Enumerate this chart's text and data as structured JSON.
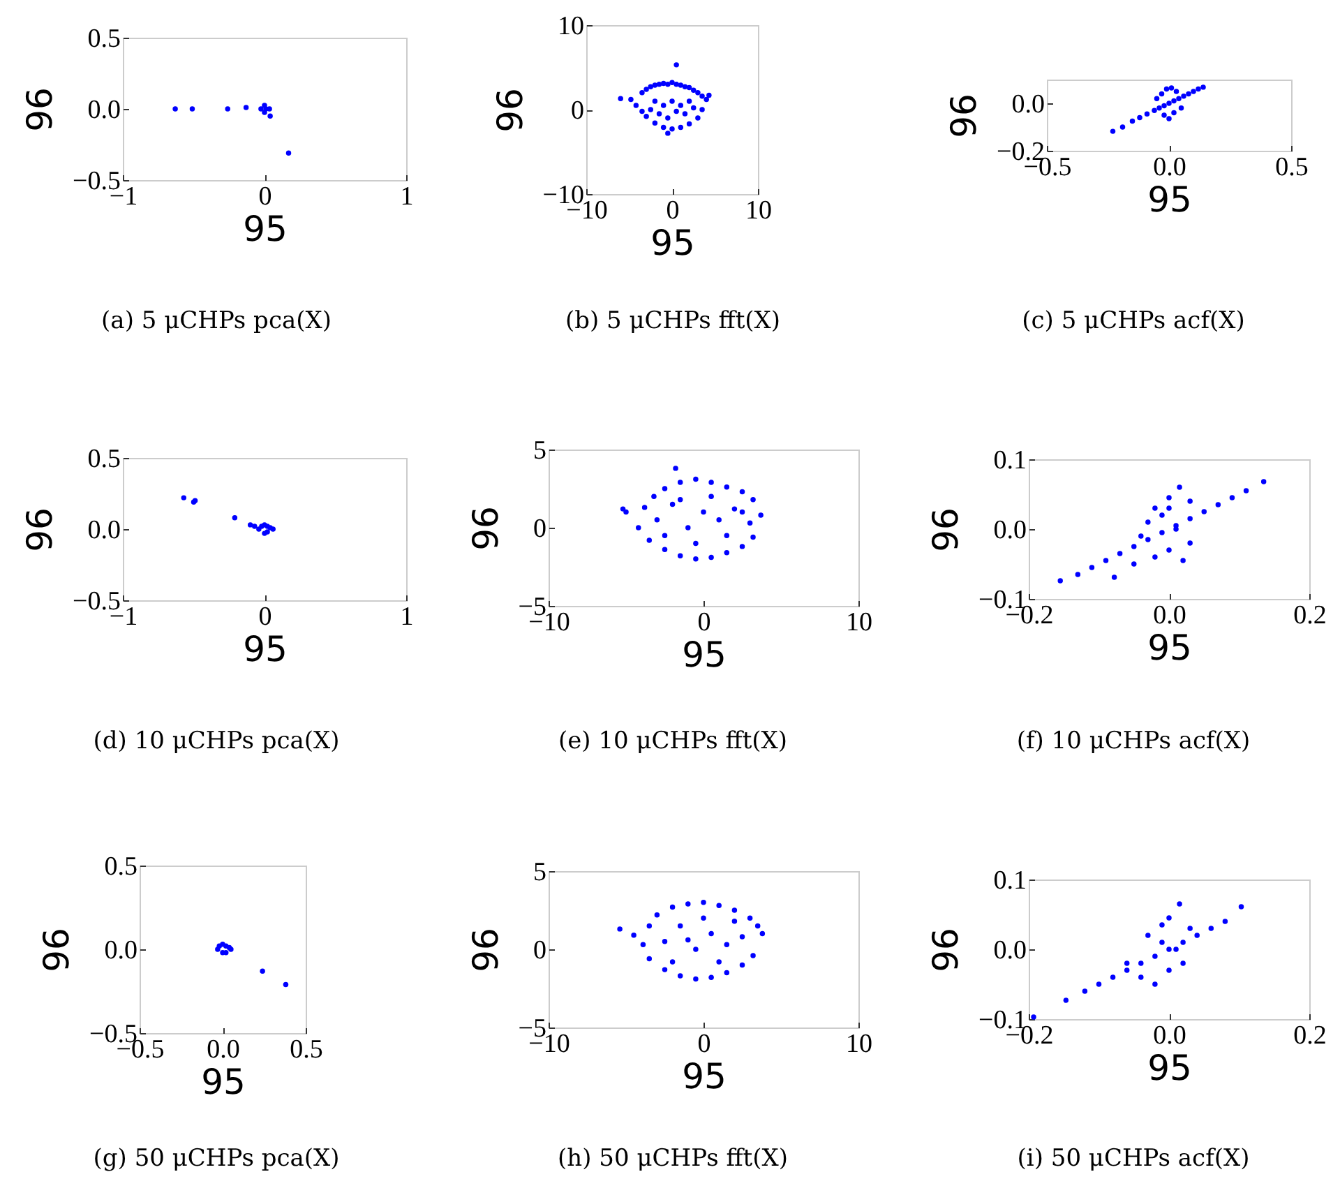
{
  "chart_data": [
    {
      "type": "scatter",
      "title": "(a)  5 μCHPs pca(X)",
      "xlabel": "95",
      "ylabel": "96",
      "marker": "circle",
      "xlim": [
        -1,
        1
      ],
      "xticks": [
        {
          "value": -1,
          "label": "−1"
        },
        0,
        1
      ],
      "ylim": [
        -0.5,
        0.5
      ],
      "yticks": [
        {
          "value": -0.5,
          "label": "−0.5"
        },
        {
          "value": 0,
          "label": "0.0"
        },
        0.5
      ],
      "series": [
        {
          "color": "#0000ff",
          "x": [
            -0.63,
            -0.51,
            -0.26,
            -0.13,
            -0.025,
            0.0,
            0.035,
            0.0,
            0.01,
            0.04,
            0.17
          ],
          "values": [
            0.0,
            0.0,
            0.0,
            0.01,
            0.0,
            0.025,
            0.0,
            -0.025,
            0.0,
            -0.05,
            -0.31
          ]
        }
      ]
    },
    {
      "type": "scatter",
      "title": "(b)  5 μCHPs fft(X)",
      "xlabel": "95",
      "ylabel": "96",
      "marker": "circle",
      "xlim": [
        -10,
        10
      ],
      "xticks": [
        {
          "value": -10,
          "label": "−10"
        },
        0,
        10
      ],
      "ylim": [
        -10,
        10
      ],
      "yticks": [
        {
          "value": -10,
          "label": "−10"
        },
        0,
        10
      ],
      "series": [
        {
          "color": "#0000ff",
          "x": [
            -6.0,
            -4.8,
            -4.2,
            -3.5,
            -3.0,
            -2.5,
            -2.0,
            -1.5,
            -1.0,
            -0.5,
            0.0,
            0.5,
            1.0,
            1.5,
            2.0,
            2.5,
            3.0,
            3.5,
            4.0,
            4.3,
            0.5,
            -0.5,
            -3.0,
            -2.0,
            -1.0,
            0.0,
            1.0,
            2.0,
            3.0,
            -2.0,
            -1.0,
            0.0,
            1.0,
            2.0,
            -3.5,
            -2.5,
            -1.5,
            -0.5,
            0.5,
            1.5,
            2.5,
            3.5
          ],
          "values": [
            1.3,
            1.2,
            0.5,
            2.0,
            2.4,
            2.7,
            2.9,
            3.0,
            3.1,
            3.0,
            3.2,
            3.0,
            2.9,
            2.7,
            2.6,
            2.3,
            2.0,
            1.6,
            1.2,
            1.7,
            5.3,
            -2.8,
            -0.8,
            -1.6,
            -2.1,
            -2.3,
            -2.1,
            -1.7,
            -1.0,
            1.0,
            0.5,
            1.0,
            0.5,
            1.0,
            -0.2,
            0.0,
            -0.5,
            -1.0,
            -0.2,
            -0.5,
            0.2,
            0.0
          ]
        }
      ]
    },
    {
      "type": "scatter",
      "title": "(c)  5 μCHPs acf(X)",
      "xlabel": "95",
      "ylabel": "96",
      "marker": "circle",
      "xlim": [
        -0.5,
        0.5
      ],
      "xticks": [
        {
          "value": -0.5,
          "label": "−0.5"
        },
        {
          "value": 0,
          "label": "0.0"
        },
        0.5
      ],
      "ylim": [
        -0.2,
        0.1
      ],
      "yticks": [
        {
          "value": -0.2,
          "label": "−0.2"
        },
        {
          "value": 0,
          "label": "0.0"
        }
      ],
      "series": [
        {
          "color": "#0000ff",
          "x": [
            -0.23,
            -0.19,
            -0.15,
            -0.12,
            -0.09,
            -0.06,
            -0.04,
            -0.02,
            0.0,
            0.02,
            0.04,
            0.06,
            0.08,
            0.1,
            0.12,
            0.14,
            -0.03,
            -0.01,
            0.01,
            0.03,
            -0.02,
            0.0,
            0.02,
            -0.05,
            0.05
          ],
          "values": [
            -0.118,
            -0.1,
            -0.075,
            -0.06,
            -0.045,
            -0.03,
            -0.02,
            -0.01,
            0.0,
            0.01,
            0.02,
            0.03,
            0.04,
            0.05,
            0.06,
            0.068,
            0.04,
            0.06,
            0.065,
            0.05,
            -0.05,
            -0.065,
            -0.04,
            0.02,
            -0.02
          ]
        }
      ]
    },
    {
      "type": "scatter",
      "title": "(d)  10 μCHPs pca(X)",
      "xlabel": "95",
      "ylabel": "96",
      "marker": "circle",
      "xlim": [
        -1,
        1
      ],
      "xticks": [
        {
          "value": -1,
          "label": "−1"
        },
        0,
        1
      ],
      "ylim": [
        -0.5,
        0.5
      ],
      "yticks": [
        {
          "value": -0.5,
          "label": "−0.5"
        },
        {
          "value": 0,
          "label": "0.0"
        },
        0.5
      ],
      "series": [
        {
          "color": "#0000ff",
          "x": [
            -0.57,
            -0.5,
            -0.49,
            -0.21,
            -0.1,
            -0.07,
            -0.04,
            -0.02,
            0.0,
            0.02,
            0.04,
            0.06,
            0.0,
            0.02
          ],
          "values": [
            0.22,
            0.19,
            0.2,
            0.08,
            0.03,
            0.02,
            0.0,
            0.02,
            0.03,
            0.02,
            0.01,
            0.0,
            -0.03,
            -0.02
          ]
        }
      ]
    },
    {
      "type": "scatter",
      "title": "(e)  10 μCHPs fft(X)",
      "xlabel": "95",
      "ylabel": "96",
      "marker": "circle",
      "xlim": [
        -10,
        10
      ],
      "xticks": [
        {
          "value": -10,
          "label": "−10"
        },
        0,
        10
      ],
      "ylim": [
        -5,
        5
      ],
      "yticks": [
        {
          "value": -5,
          "label": "−5"
        },
        0,
        5
      ],
      "series": [
        {
          "color": "#0000ff",
          "x": [
            -5.2,
            -5.0,
            -1.8,
            -4.2,
            -3.8,
            -3.2,
            -2.5,
            -1.5,
            -0.5,
            0.5,
            1.5,
            2.5,
            3.2,
            3.7,
            -3.5,
            -2.5,
            -1.5,
            -0.5,
            0.5,
            1.5,
            2.5,
            3.2,
            -3.0,
            -2.0,
            -1.0,
            0.0,
            1.0,
            2.0,
            3.0,
            -2.5,
            -1.5,
            -0.5,
            0.5,
            1.5,
            2.5
          ],
          "values": [
            1.2,
            1.0,
            3.8,
            0.0,
            1.3,
            2.0,
            2.5,
            2.9,
            3.1,
            2.9,
            2.6,
            2.3,
            1.8,
            0.8,
            -0.8,
            -1.4,
            -1.8,
            -2.0,
            -1.9,
            -1.6,
            -1.2,
            -0.6,
            0.5,
            1.5,
            0.0,
            1.0,
            0.5,
            1.2,
            0.3,
            -0.5,
            1.8,
            -1.0,
            2.0,
            -0.5,
            1.0
          ]
        }
      ]
    },
    {
      "type": "scatter",
      "title": "(f)  10 μCHPs acf(X)",
      "xlabel": "95",
      "ylabel": "96",
      "marker": "circle",
      "xlim": [
        -0.2,
        0.2
      ],
      "xticks": [
        {
          "value": -0.2,
          "label": "−0.2"
        },
        {
          "value": 0,
          "label": "0.0"
        },
        0.2
      ],
      "ylim": [
        -0.1,
        0.1
      ],
      "yticks": [
        {
          "value": -0.1,
          "label": "−0.1"
        },
        {
          "value": 0,
          "label": "0.0"
        },
        0.1
      ],
      "series": [
        {
          "color": "#0000ff",
          "x": [
            -0.155,
            -0.13,
            -0.11,
            -0.09,
            -0.07,
            -0.05,
            -0.03,
            -0.01,
            0.01,
            0.03,
            0.05,
            0.07,
            0.09,
            0.11,
            0.135,
            -0.078,
            -0.05,
            -0.03,
            -0.02,
            0.0,
            0.015,
            0.03,
            -0.04,
            -0.02,
            0.0,
            0.02,
            0.01,
            -0.01,
            0.0,
            0.03
          ],
          "values": [
            -0.074,
            -0.065,
            -0.055,
            -0.045,
            -0.035,
            -0.025,
            -0.015,
            -0.005,
            0.005,
            0.015,
            0.025,
            0.035,
            0.045,
            0.055,
            0.068,
            -0.069,
            -0.05,
            0.01,
            0.03,
            0.045,
            0.06,
            0.04,
            -0.01,
            -0.04,
            -0.03,
            -0.045,
            0.0,
            0.02,
            0.03,
            -0.02
          ]
        }
      ]
    },
    {
      "type": "scatter",
      "title": "(g)  50 μCHPs pca(X)",
      "xlabel": "95",
      "ylabel": "96",
      "marker": "circle",
      "xlim": [
        -0.5,
        0.5
      ],
      "xticks": [
        {
          "value": -0.5,
          "label": "−0.5"
        },
        {
          "value": 0,
          "label": "0.0"
        },
        0.5
      ],
      "ylim": [
        -0.5,
        0.5
      ],
      "yticks": [
        {
          "value": -0.5,
          "label": "−0.5"
        },
        {
          "value": 0,
          "label": "0.0"
        },
        0.5
      ],
      "series": [
        {
          "color": "#0000ff",
          "x": [
            -0.03,
            -0.02,
            0.0,
            0.02,
            0.04,
            0.05,
            0.0,
            0.02,
            0.24,
            0.38
          ],
          "values": [
            0.0,
            0.02,
            0.03,
            0.02,
            0.01,
            0.0,
            -0.02,
            -0.02,
            -0.13,
            -0.21
          ]
        }
      ]
    },
    {
      "type": "scatter",
      "title": "(h)  50 μCHPs fft(X)",
      "xlabel": "95",
      "ylabel": "96",
      "marker": "circle",
      "xlim": [
        -10,
        10
      ],
      "xticks": [
        {
          "value": -10,
          "label": "−10"
        },
        0,
        10
      ],
      "ylim": [
        -5,
        5
      ],
      "yticks": [
        {
          "value": -5,
          "label": "−5"
        },
        0,
        5
      ],
      "series": [
        {
          "color": "#0000ff",
          "x": [
            -5.4,
            -4.5,
            -3.9,
            -3.5,
            -3.0,
            -2.0,
            -1.0,
            0.0,
            1.0,
            2.0,
            3.0,
            3.5,
            3.8,
            -3.5,
            -2.5,
            -1.5,
            -0.5,
            0.5,
            1.5,
            2.5,
            3.2,
            -2.5,
            -1.5,
            -0.5,
            0.5,
            1.5,
            2.5,
            -2.0,
            -1.0,
            0.0,
            1.0,
            2.0
          ],
          "values": [
            1.3,
            0.9,
            0.3,
            1.5,
            2.2,
            2.7,
            2.9,
            3.0,
            2.8,
            2.5,
            2.0,
            1.5,
            1.0,
            -0.6,
            -1.3,
            -1.7,
            -1.9,
            -1.8,
            -1.5,
            -1.0,
            -0.4,
            0.5,
            1.5,
            0.0,
            1.0,
            0.3,
            0.8,
            -0.8,
            0.6,
            2.0,
            -0.8,
            1.8
          ]
        }
      ]
    },
    {
      "type": "scatter",
      "title": "(i)  50 μCHPs acf(X)",
      "xlabel": "95",
      "ylabel": "96",
      "marker": "circle",
      "xlim": [
        -0.2,
        0.2
      ],
      "xticks": [
        {
          "value": -0.2,
          "label": "−0.2"
        },
        {
          "value": 0,
          "label": "0.0"
        },
        0.2
      ],
      "ylim": [
        -0.1,
        0.1
      ],
      "yticks": [
        {
          "value": -0.1,
          "label": "−0.1"
        },
        {
          "value": 0,
          "label": "0.0"
        },
        0.1
      ],
      "series": [
        {
          "color": "#0000ff",
          "x": [
            -0.193,
            -0.147,
            -0.12,
            -0.1,
            -0.08,
            -0.06,
            -0.04,
            -0.02,
            0.0,
            0.02,
            0.04,
            0.06,
            0.08,
            0.103,
            -0.06,
            -0.03,
            -0.01,
            0.0,
            0.015,
            0.03,
            -0.04,
            -0.02,
            0.0,
            0.02,
            -0.01,
            0.01
          ],
          "values": [
            -0.097,
            -0.073,
            -0.06,
            -0.05,
            -0.04,
            -0.03,
            -0.02,
            -0.01,
            0.0,
            0.01,
            0.02,
            0.03,
            0.04,
            0.061,
            -0.02,
            0.02,
            0.035,
            0.045,
            0.065,
            0.03,
            -0.04,
            -0.05,
            -0.03,
            -0.02,
            0.01,
            0.0
          ]
        }
      ]
    }
  ]
}
